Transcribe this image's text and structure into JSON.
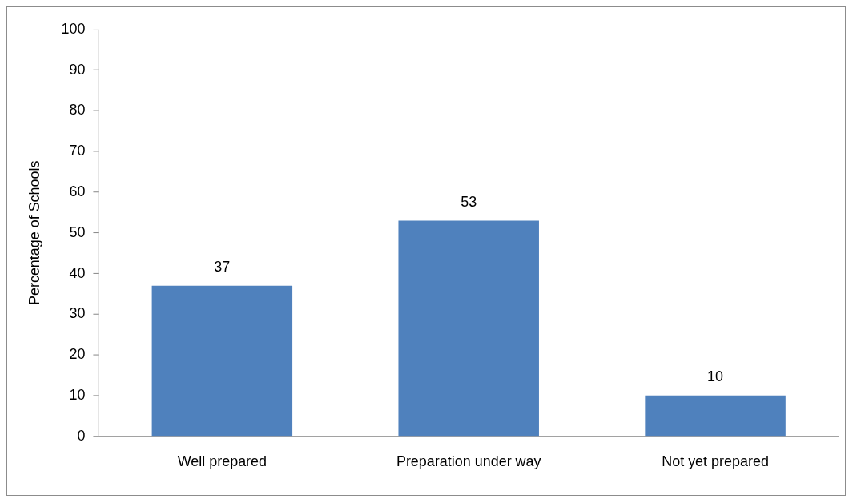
{
  "chart_data": {
    "type": "bar",
    "ylabel": "Percentage of Schools",
    "categories": [
      "Well prepared",
      "Preparation under way",
      "Not yet prepared"
    ],
    "values": [
      37,
      53,
      10
    ],
    "color": "#4f81bd",
    "ylim": [
      0,
      100
    ],
    "yticks": [
      0,
      10,
      20,
      30,
      40,
      50,
      60,
      70,
      80,
      90,
      100
    ],
    "grid": false,
    "legend": false,
    "data_labels": true
  }
}
